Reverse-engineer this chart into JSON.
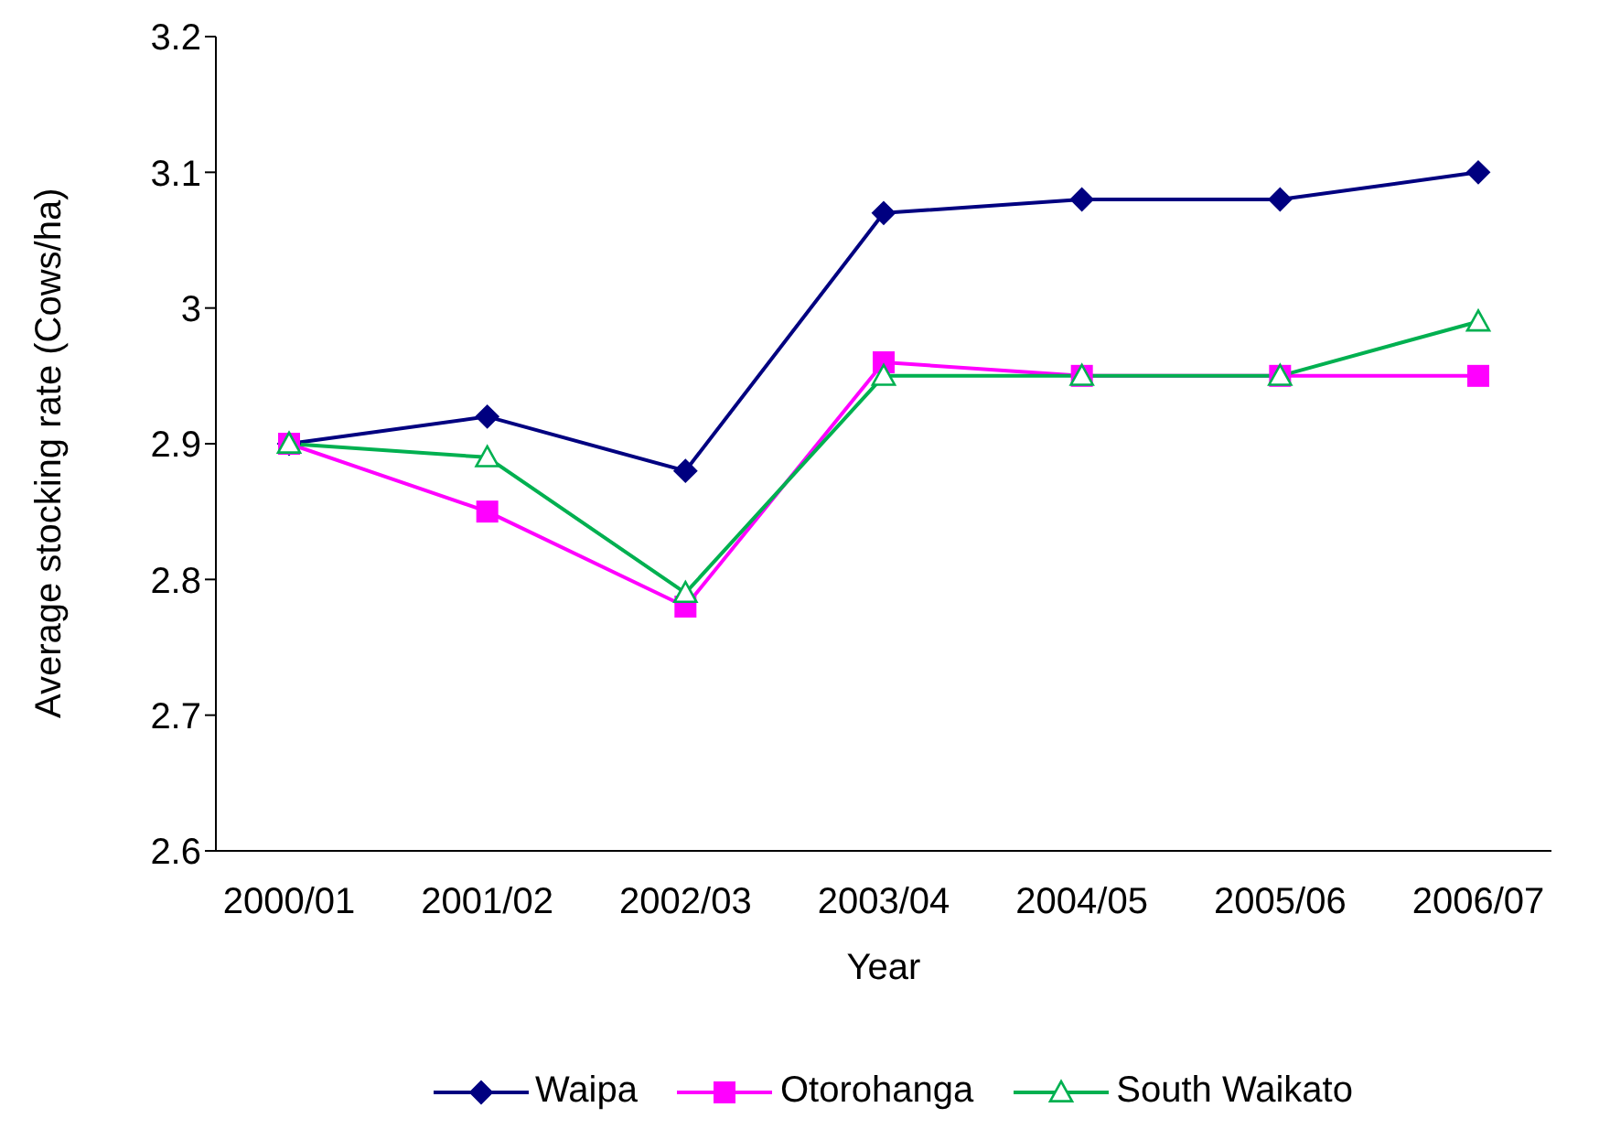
{
  "chart_data": {
    "type": "line",
    "xlabel": "Year",
    "ylabel": "Average stocking rate (Cows/ha)",
    "categories": [
      "2000/01",
      "2001/02",
      "2002/03",
      "2003/04",
      "2004/05",
      "2005/06",
      "2006/07"
    ],
    "series": [
      {
        "name": "Waipa",
        "color": "#000080",
        "marker": "diamond",
        "values": [
          2.9,
          2.92,
          2.88,
          3.07,
          3.08,
          3.08,
          3.1
        ]
      },
      {
        "name": "Otorohanga",
        "color": "#ff00ff",
        "marker": "square",
        "values": [
          2.9,
          2.85,
          2.78,
          2.96,
          2.95,
          2.95,
          2.95
        ]
      },
      {
        "name": "South Waikato",
        "color": "#00b050",
        "marker": "triangle",
        "values": [
          2.9,
          2.89,
          2.79,
          2.95,
          2.95,
          2.95,
          2.99
        ]
      }
    ],
    "ylim": [
      2.6,
      3.2
    ],
    "yticks": [
      2.6,
      2.7,
      2.8,
      2.9,
      3,
      3.1,
      3.2
    ],
    "grid": false,
    "legend": "bottom"
  }
}
